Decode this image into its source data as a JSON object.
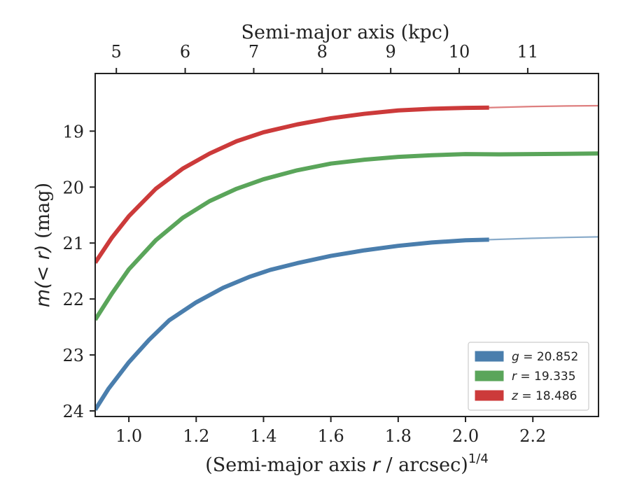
{
  "chart_data": {
    "type": "line",
    "xlabel_prefix": "(Semi-major axis ",
    "xlabel_var": "r",
    "xlabel_suffix": " / arcsec)",
    "xlabel_sup": "1/4",
    "top_xlabel": "Semi-major axis (kpc)",
    "ylabel_prefix": "m(< r)",
    "ylabel_suffix": " (mag)",
    "xlim": [
      0.9,
      2.395
    ],
    "ylim": [
      24.1,
      17.97
    ],
    "y_inverted": true,
    "x_ticks": [
      "1.0",
      "1.2",
      "1.4",
      "1.6",
      "1.8",
      "2.0",
      "2.2"
    ],
    "y_ticks": [
      "19",
      "20",
      "21",
      "22",
      "23",
      "24"
    ],
    "top_ticks": [
      {
        "label": "5",
        "x": 0.9628
      },
      {
        "label": "6",
        "x": 1.1673
      },
      {
        "label": "7",
        "x": 1.3709
      },
      {
        "label": "8",
        "x": 1.5743
      },
      {
        "label": "9",
        "x": 1.7778
      },
      {
        "label": "10",
        "x": 1.9813
      },
      {
        "label": "11",
        "x": 2.1848
      }
    ],
    "legend_position": "lower-right",
    "grid": false,
    "series": [
      {
        "name": "g = 20.852",
        "legend_var": "g",
        "legend_value": "= 20.852",
        "color": "#4a7ead",
        "x": [
          0.9,
          0.94,
          1.0,
          1.06,
          1.12,
          1.2,
          1.28,
          1.36,
          1.42,
          1.5,
          1.6,
          1.7,
          1.8,
          1.9,
          2.0,
          2.07
        ],
        "y": [
          23.98,
          23.6,
          23.13,
          22.73,
          22.38,
          22.06,
          21.8,
          21.6,
          21.48,
          21.36,
          21.23,
          21.13,
          21.05,
          20.99,
          20.95,
          20.94
        ],
        "extrap_x": [
          2.07,
          2.2,
          2.3,
          2.395
        ],
        "extrap_y": [
          20.94,
          20.915,
          20.9,
          20.89
        ]
      },
      {
        "name": "r = 19.335",
        "legend_var": "r",
        "legend_value": "= 19.335",
        "color": "#5aa55a",
        "x": [
          0.9,
          0.95,
          1.0,
          1.08,
          1.16,
          1.24,
          1.32,
          1.4,
          1.5,
          1.6,
          1.7,
          1.8,
          1.9,
          2.0,
          2.1,
          2.2,
          2.3,
          2.395
        ],
        "y": [
          22.37,
          21.9,
          21.47,
          20.95,
          20.55,
          20.25,
          20.03,
          19.86,
          19.7,
          19.58,
          19.51,
          19.46,
          19.43,
          19.41,
          19.415,
          19.41,
          19.405,
          19.4
        ]
      },
      {
        "name": "z = 18.486",
        "legend_var": "z",
        "legend_value": "= 18.486",
        "color": "#cc3a3a",
        "x": [
          0.9,
          0.95,
          1.0,
          1.08,
          1.16,
          1.24,
          1.32,
          1.4,
          1.5,
          1.6,
          1.7,
          1.8,
          1.9,
          2.0,
          2.07
        ],
        "y": [
          21.35,
          20.9,
          20.52,
          20.03,
          19.67,
          19.4,
          19.18,
          19.02,
          18.88,
          18.77,
          18.69,
          18.63,
          18.6,
          18.585,
          18.58
        ],
        "extrap_x": [
          2.07,
          2.2,
          2.3,
          2.395
        ],
        "extrap_y": [
          18.58,
          18.56,
          18.55,
          18.545
        ]
      }
    ]
  }
}
